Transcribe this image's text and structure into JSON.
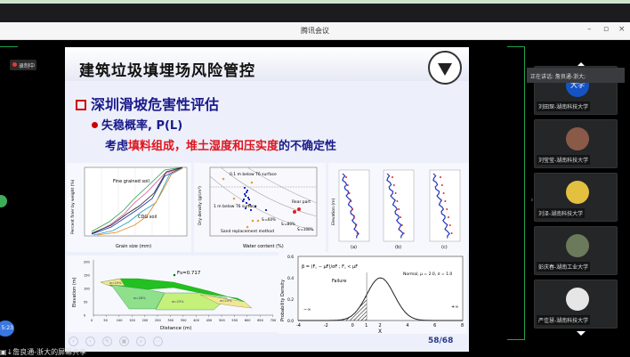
{
  "window": {
    "title": "腾讯会议",
    "minimize": "–",
    "maximize": "▫",
    "close": "×"
  },
  "recording": {
    "label": "录制中"
  },
  "slide": {
    "title": "建筑垃圾填埋场风险管控",
    "heading": "深圳滑坡危害性评估",
    "bullet": "失稳概率, P(L)",
    "line_prefix": "考虑",
    "line_red": "填料组成，堆土湿度和压实度",
    "line_suffix": "的不确定性",
    "page": "58/68",
    "controls": [
      "‹",
      "›",
      "✎",
      "▣",
      "⌕",
      "⋯"
    ],
    "fig_grain": {
      "xlabel": "Grain size (mm)",
      "ylabel": "Percent finer by weight (%)",
      "note1": "Fine grained soil",
      "note2": "CDG soil",
      "xticks": [
        "0.0001",
        "0.001",
        "0.01",
        "0.1",
        "1",
        "10",
        "100"
      ],
      "yticks": [
        "0",
        "20",
        "40",
        "60",
        "80",
        "100"
      ]
    },
    "fig_density": {
      "xlabel": "Water content (%)",
      "ylabel": "Dry density (g/cm³)",
      "note1": "0.1 m below T6 surface",
      "note2": "1 m below T6 surface",
      "note3": "Rear part",
      "note4": "Sand replacement method",
      "s1": "Sᵣ=60%",
      "s2": "Sᵣ=80%",
      "s3": "Sᵣ=100%",
      "xticks": [
        "10",
        "15",
        "20",
        "25",
        "30",
        "35",
        "40"
      ],
      "yticks": [
        "1.0",
        "1.2",
        "1.4",
        "1.6",
        "1.8",
        "2.0"
      ]
    },
    "fig_profiles": {
      "ylabel": "Elevation (m)",
      "panels": [
        "(a)",
        "(b)",
        "(c)"
      ]
    },
    "fig_slope": {
      "xlabel": "Distance (m)",
      "ylabel": "Elevation (m)",
      "fs": "Fs=0.717",
      "zones": [
        "w=19%",
        "w=26%",
        "w=23%",
        "w=19%"
      ],
      "xticks": [
        "0",
        "50",
        "100",
        "150",
        "200",
        "250",
        "300",
        "350",
        "400",
        "450",
        "500",
        "550",
        "600",
        "650",
        "700"
      ],
      "yticks": [
        "0",
        "50",
        "100",
        "150",
        "200"
      ]
    },
    "fig_normal": {
      "xlabel": "X",
      "ylabel": "Probability Density",
      "legend": "Normal, μ = 2.0, σ = 1.0",
      "failure": "Failure",
      "beta": "β = (F꜀ − μF)/σF ; F꜀ < μF",
      "neg_inf": "−∞",
      "pos_inf": "+∞",
      "xticks": [
        "-4",
        "-2",
        "0",
        "1",
        "2",
        "4",
        "6",
        "8"
      ],
      "yticks": [
        "0.0",
        "0.2",
        "0.4",
        "0.6"
      ]
    }
  },
  "panel": {
    "speaking": "正在讲话: 詹良通-浙大;",
    "participants": [
      {
        "name": "刘田琛-湖南科技大学",
        "avatar_text": "大学",
        "color": "#1553c4"
      },
      {
        "name": "刘莹莹-湖南科技大学",
        "avatar_text": "",
        "color": "#8a5a48"
      },
      {
        "name": "刘泽-湖南科技大学",
        "avatar_text": "",
        "color": "#e3c040"
      },
      {
        "name": "彭庆春-湖南工业大学",
        "avatar_text": "",
        "color": "#6b7a5a"
      },
      {
        "name": "严佳慧-湖南科技大学",
        "avatar_text": "",
        "color": "#e6e6e6"
      }
    ]
  },
  "share_label": "詹良通-浙大的屏幕共享",
  "left_badge": "5:23"
}
